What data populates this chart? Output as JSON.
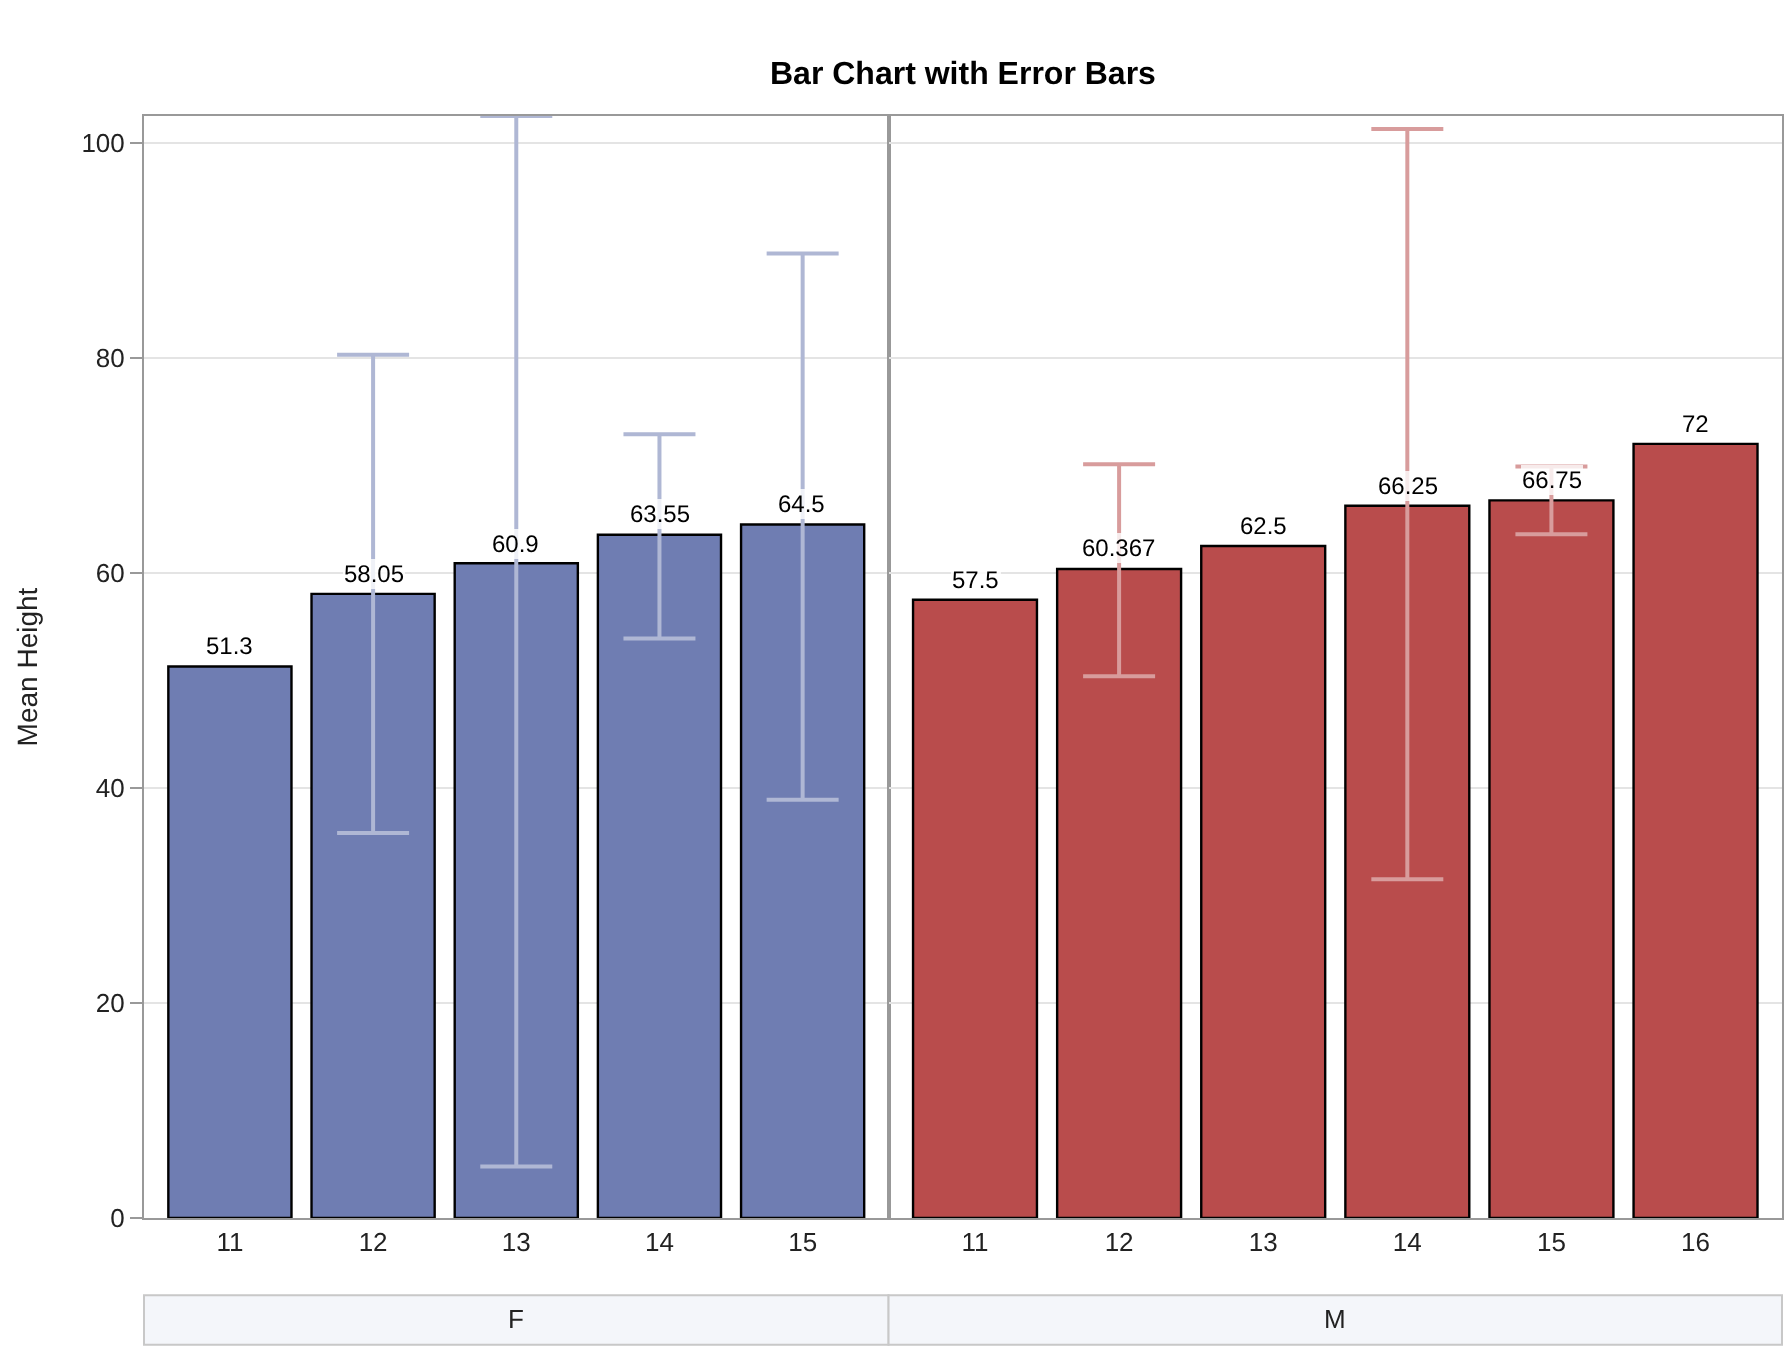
{
  "chart_data": [
    {
      "type": "bar",
      "title": "Bar Chart with Error Bars",
      "ylabel": "Mean Height",
      "xlabel": "F",
      "categories": [
        "11",
        "12",
        "13",
        "14",
        "15"
      ],
      "series": [
        {
          "color": "#6f7db2",
          "values": [
            51.3,
            58.05,
            60.9,
            63.55,
            64.5
          ],
          "errors": [
            null,
            [
              35.8,
              80.3
            ],
            [
              4.8,
              102.5
            ],
            [
              53.9,
              72.9
            ],
            [
              38.9,
              89.7
            ]
          ]
        }
      ],
      "ylim": [
        0,
        102.5
      ],
      "yticks": [
        0,
        20,
        40,
        60,
        80,
        100
      ],
      "grid": "y",
      "data_labels": true
    },
    {
      "type": "bar",
      "xlabel": "M",
      "categories": [
        "11",
        "12",
        "13",
        "14",
        "15",
        "16"
      ],
      "series": [
        {
          "color": "#b94c4c",
          "values": [
            57.5,
            60.367,
            62.5,
            66.25,
            66.75,
            72
          ],
          "errors": [
            null,
            [
              50.4,
              70.1
            ],
            null,
            [
              31.5,
              101.3
            ],
            [
              63.6,
              69.9
            ],
            null
          ]
        }
      ],
      "ylim": [
        0,
        102.5
      ],
      "yticks": [
        0,
        20,
        40,
        60,
        80,
        100
      ],
      "grid": "y",
      "data_labels": true,
      "tick_labels": "x"
    }
  ]
}
